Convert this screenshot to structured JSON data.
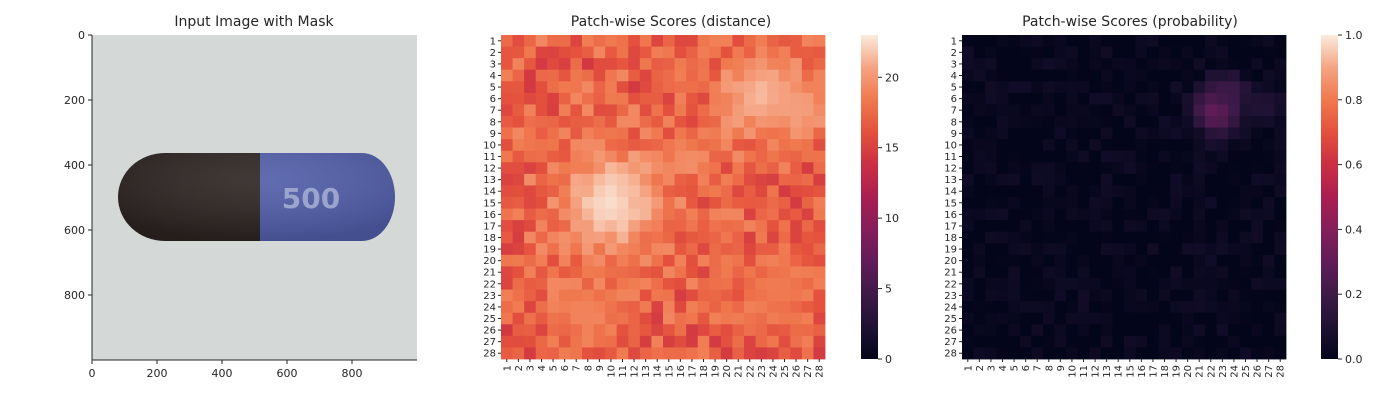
{
  "chart_data": [
    {
      "type": "image",
      "title": "Input Image with Mask",
      "xlim": [
        0,
        1000
      ],
      "ylim": [
        1000,
        0
      ],
      "xticks": [
        "0",
        "200",
        "400",
        "600",
        "800"
      ],
      "yticks": [
        "0",
        "200",
        "400",
        "600",
        "800"
      ],
      "image": {
        "background": "#d4d8d6",
        "capsule_left_color": "#2b2320",
        "capsule_right_color": "#4f5da8",
        "imprint": "500"
      }
    },
    {
      "type": "heatmap",
      "title": "Patch-wise Scores (distance)",
      "rows": 28,
      "cols": 28,
      "colorbar": {
        "min": 0,
        "max": 23,
        "ticks": [
          "0",
          "5",
          "10",
          "15",
          "20"
        ]
      },
      "colormap": "rocket",
      "hotspots": [
        {
          "row": 14.5,
          "col": 9.5,
          "radius": 3.2,
          "value": 22.5
        },
        {
          "row": 5.2,
          "col": 22.5,
          "radius": 2.6,
          "value": 21.5
        },
        {
          "row": 6.5,
          "col": 26,
          "radius": 1.6,
          "value": 20.5
        },
        {
          "row": 10.5,
          "col": 16,
          "radius": 1.4,
          "value": 19.5
        },
        {
          "row": 24,
          "col": 7.5,
          "radius": 2.2,
          "value": 19
        },
        {
          "row": 22,
          "col": 24,
          "radius": 2.5,
          "value": 18.5
        }
      ],
      "base_value": 16.8,
      "noise": 2.4
    },
    {
      "type": "heatmap",
      "title": "Patch-wise Scores (probability)",
      "rows": 28,
      "cols": 28,
      "colorbar": {
        "min": 0,
        "max": 1.0,
        "ticks": [
          "0.0",
          "0.2",
          "0.4",
          "0.6",
          "0.8",
          "1.0"
        ]
      },
      "colormap": "rocket",
      "hotspots": [
        {
          "row": 6.5,
          "col": 22,
          "radius": 1.4,
          "value": 0.34
        },
        {
          "row": 5,
          "col": 23,
          "radius": 1.2,
          "value": 0.2
        },
        {
          "row": 6,
          "col": 26,
          "radius": 1.0,
          "value": 0.12
        }
      ],
      "base_value": 0.01,
      "noise": 0.04
    }
  ]
}
